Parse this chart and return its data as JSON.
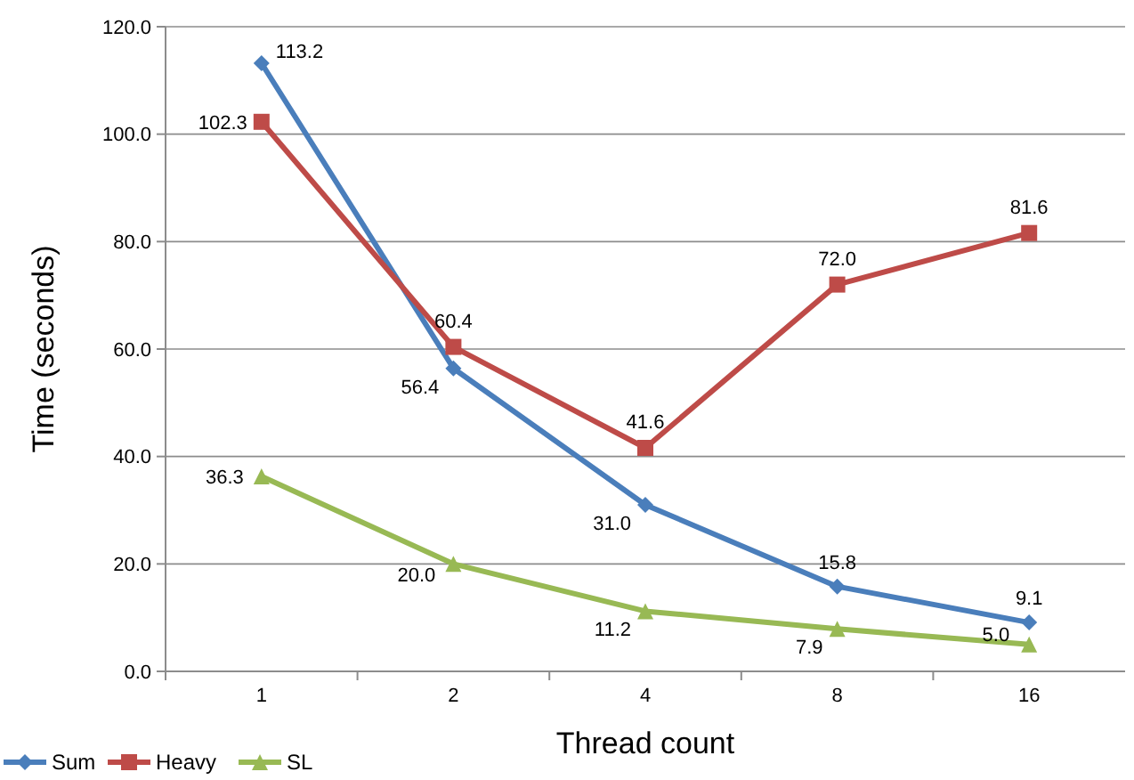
{
  "chart_data": {
    "type": "line",
    "xlabel": "Thread count",
    "ylabel": "Time (seconds)",
    "categories": [
      "1",
      "2",
      "4",
      "8",
      "16"
    ],
    "ylim": [
      0,
      120
    ],
    "yticks": [
      {
        "value": 0,
        "label": "0.0"
      },
      {
        "value": 20,
        "label": "20.0"
      },
      {
        "value": 40,
        "label": "40.0"
      },
      {
        "value": 60,
        "label": "60.0"
      },
      {
        "value": 80,
        "label": "80.0"
      },
      {
        "value": 100,
        "label": "100.0"
      },
      {
        "value": 120,
        "label": "120.0"
      }
    ],
    "grid": "y",
    "legend": "bottom left",
    "line_style": "solid",
    "series": [
      {
        "name": "Sum",
        "color": "#4a7ebb",
        "marker": "diamond",
        "values": [
          113.2,
          56.4,
          31.0,
          15.8,
          9.1
        ],
        "value_labels": [
          "113.2",
          "56.4",
          "31.0",
          "15.8",
          "9.1"
        ]
      },
      {
        "name": "Heavy",
        "color": "#be4b48",
        "marker": "square",
        "values": [
          102.3,
          60.4,
          41.6,
          72.0,
          81.6
        ],
        "value_labels": [
          "102.3",
          "60.4",
          "41.6",
          "72.0",
          "81.6"
        ]
      },
      {
        "name": "SL",
        "color": "#98b954",
        "marker": "triangle",
        "values": [
          36.3,
          20.0,
          11.2,
          7.9,
          5.0
        ],
        "value_labels": [
          "36.3",
          "20.0",
          "11.2",
          "7.9",
          "5.0"
        ]
      }
    ]
  }
}
